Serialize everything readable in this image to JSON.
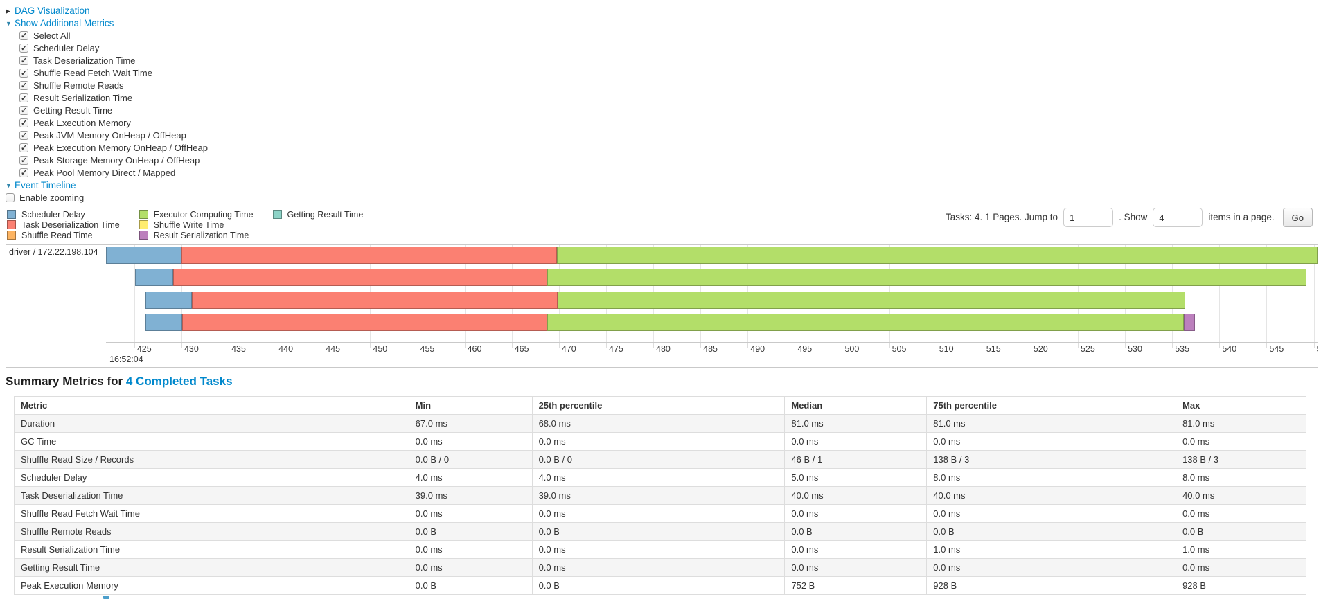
{
  "controls": {
    "dag": {
      "label": "DAG Visualization"
    },
    "additional_metrics": {
      "label": "Show Additional Metrics"
    },
    "metrics": [
      "Select All",
      "Scheduler Delay",
      "Task Deserialization Time",
      "Shuffle Read Fetch Wait Time",
      "Shuffle Remote Reads",
      "Result Serialization Time",
      "Getting Result Time",
      "Peak Execution Memory",
      "Peak JVM Memory OnHeap / OffHeap",
      "Peak Execution Memory OnHeap / OffHeap",
      "Peak Storage Memory OnHeap / OffHeap",
      "Peak Pool Memory Direct / Mapped"
    ],
    "event_timeline": {
      "label": "Event Timeline"
    },
    "enable_zooming": {
      "label": "Enable zooming",
      "checked": false
    }
  },
  "legend": {
    "columns": [
      [
        {
          "label": "Scheduler Delay",
          "key": "scheduler_delay"
        },
        {
          "label": "Task Deserialization Time",
          "key": "task_deserialization"
        },
        {
          "label": "Shuffle Read Time",
          "key": "shuffle_read"
        }
      ],
      [
        {
          "label": "Executor Computing Time",
          "key": "executor_computing"
        },
        {
          "label": "Shuffle Write Time",
          "key": "shuffle_write"
        },
        {
          "label": "Result Serialization Time",
          "key": "result_serialization"
        }
      ],
      [
        {
          "label": "Getting Result Time",
          "key": "getting_result"
        }
      ]
    ]
  },
  "pagination": {
    "tasks_text": "Tasks: 4. 1 Pages. Jump to",
    "jump_value": "1",
    "show_text": ". Show",
    "show_value": "4",
    "items_text": "items in a page.",
    "go_label": "Go"
  },
  "chart_data": {
    "type": "timeline-gantt",
    "group_label": "driver / 172.22.198.104",
    "x_axis": {
      "major_label": "16:52:04",
      "unit": "ms",
      "range": [
        422.0,
        550.4
      ],
      "tick_start": 425,
      "tick_end": 550,
      "tick_step": 5
    },
    "colors": {
      "scheduler_delay": "#80B1D3",
      "task_deserialization": "#FB8072",
      "shuffle_read": "#FDB462",
      "executor_computing": "#B3DE69",
      "shuffle_write": "#FFED6F",
      "result_serialization": "#BC80BD",
      "getting_result": "#8DD3C7"
    },
    "tasks": [
      {
        "segments": [
          {
            "name": "scheduler_delay",
            "start": 422.0,
            "end": 430.0
          },
          {
            "name": "task_deserialization",
            "start": 430.0,
            "end": 469.8
          },
          {
            "name": "executor_computing",
            "start": 469.8,
            "end": 550.4
          }
        ]
      },
      {
        "segments": [
          {
            "name": "scheduler_delay",
            "start": 425.1,
            "end": 429.1
          },
          {
            "name": "task_deserialization",
            "start": 429.1,
            "end": 468.8
          },
          {
            "name": "executor_computing",
            "start": 468.8,
            "end": 549.2
          }
        ]
      },
      {
        "segments": [
          {
            "name": "scheduler_delay",
            "start": 426.2,
            "end": 431.1
          },
          {
            "name": "task_deserialization",
            "start": 431.1,
            "end": 469.9
          },
          {
            "name": "executor_computing",
            "start": 469.9,
            "end": 536.4
          }
        ]
      },
      {
        "segments": [
          {
            "name": "scheduler_delay",
            "start": 426.2,
            "end": 430.1
          },
          {
            "name": "task_deserialization",
            "start": 430.1,
            "end": 468.8
          },
          {
            "name": "executor_computing",
            "start": 468.8,
            "end": 536.2
          },
          {
            "name": "result_serialization",
            "start": 536.2,
            "end": 537.4
          }
        ]
      }
    ]
  },
  "summary": {
    "heading": "Summary Metrics for",
    "heading_link": "4 Completed Tasks",
    "headers": [
      "Metric",
      "Min",
      "25th percentile",
      "Median",
      "75th percentile",
      "Max"
    ],
    "rows": [
      [
        "Duration",
        "67.0 ms",
        "68.0 ms",
        "81.0 ms",
        "81.0 ms",
        "81.0 ms"
      ],
      [
        "GC Time",
        "0.0 ms",
        "0.0 ms",
        "0.0 ms",
        "0.0 ms",
        "0.0 ms"
      ],
      [
        "Shuffle Read Size / Records",
        "0.0 B / 0",
        "0.0 B / 0",
        "46 B / 1",
        "138 B / 3",
        "138 B / 3"
      ],
      [
        "Scheduler Delay",
        "4.0 ms",
        "4.0 ms",
        "5.0 ms",
        "8.0 ms",
        "8.0 ms"
      ],
      [
        "Task Deserialization Time",
        "39.0 ms",
        "39.0 ms",
        "40.0 ms",
        "40.0 ms",
        "40.0 ms"
      ],
      [
        "Shuffle Read Fetch Wait Time",
        "0.0 ms",
        "0.0 ms",
        "0.0 ms",
        "0.0 ms",
        "0.0 ms"
      ],
      [
        "Shuffle Remote Reads",
        "0.0 B",
        "0.0 B",
        "0.0 B",
        "0.0 B",
        "0.0 B"
      ],
      [
        "Result Serialization Time",
        "0.0 ms",
        "0.0 ms",
        "0.0 ms",
        "1.0 ms",
        "1.0 ms"
      ],
      [
        "Getting Result Time",
        "0.0 ms",
        "0.0 ms",
        "0.0 ms",
        "0.0 ms",
        "0.0 ms"
      ],
      [
        "Peak Execution Memory",
        "0.0 B",
        "0.0 B",
        "752 B",
        "928 B",
        "928 B"
      ]
    ]
  }
}
